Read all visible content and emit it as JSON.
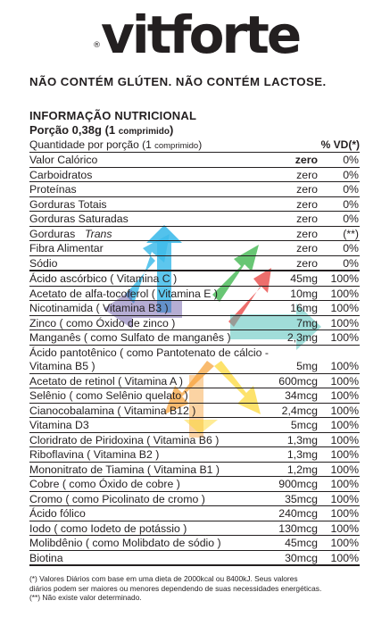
{
  "brand": {
    "registered": "®",
    "name": "vitforte"
  },
  "notice": "NÃO CONTÉM GLÚTEN. NÃO CONTÉM LACTOSE.",
  "nutrition": {
    "title": "INFORMAÇÃO NUTRICIONAL",
    "portion_main": "Porção 0,38g",
    "portion_paren_open": "(1",
    "portion_unit": "comprimido",
    "portion_paren_close": ")",
    "qty_main": "Quantidade por porção (1",
    "qty_unit": "comprimido",
    "qty_close": ")",
    "vd_header": "% VD(*)",
    "rows": [
      {
        "name": "Valor  Calórico",
        "amount": "zero",
        "vd": "0%"
      },
      {
        "name": "Carboidratos",
        "amount": "zero",
        "vd": "0%"
      },
      {
        "name": "Proteínas",
        "amount": "zero",
        "vd": "0%"
      },
      {
        "name": "Gorduras  Totais",
        "amount": "zero",
        "vd": "0%"
      },
      {
        "name": "Gorduras  Saturadas",
        "amount": "zero",
        "vd": "0%"
      },
      {
        "name": "Gorduras ",
        "name_italic": "Trans",
        "amount": "zero",
        "vd": "(**)"
      },
      {
        "name": "Fibra  Alimentar",
        "amount": "zero",
        "vd": "0%"
      },
      {
        "name": "Sódio",
        "amount": "zero",
        "vd": "0%"
      },
      {
        "name": "Ácido ascórbico ( Vitamina C )",
        "amount": "45mg",
        "vd": "100%"
      },
      {
        "name": "Acetato de alfa-tocoferol ( Vitamina E )",
        "amount": "10mg",
        "vd": "100%"
      },
      {
        "name": "Nicotinamida ( Vitamina B3 )",
        "amount": "16mg",
        "vd": "100%"
      },
      {
        "name": "Zinco ( como Óxido de zinco )",
        "amount": "7mg",
        "vd": "100%"
      },
      {
        "name": "Manganês ( como Sulfato de manganês )",
        "amount": "2,3mg",
        "vd": "100%"
      },
      {
        "name": "Ácido pantotênico ( como Pantotenato de cálcio -",
        "amount": "",
        "vd": ""
      },
      {
        "name": "Vitamina  B5  )",
        "amount": "5mg",
        "vd": "100%"
      },
      {
        "name": "Acetato de retinol ( Vitamina A )",
        "amount": "600mcg",
        "vd": "100%"
      },
      {
        "name": "Selênio ( como Selênio quelato )",
        "amount": "34mcg",
        "vd": "100%"
      },
      {
        "name": "Cianocobalamina ( Vitamina B12 )",
        "amount": "2,4mcg",
        "vd": "100%"
      },
      {
        "name": "Vitamina  D3",
        "amount": "5mcg",
        "vd": "100%"
      },
      {
        "name": "Cloridrato de Piridoxina ( Vitamina B6 )",
        "amount": "1,3mg",
        "vd": "100%"
      },
      {
        "name": "Riboflavina ( Vitamina B2 )",
        "amount": "1,3mg",
        "vd": "100%"
      },
      {
        "name": "Mononitrato de Tiamina ( Vitamina B1 )",
        "amount": "1,2mg",
        "vd": "100%"
      },
      {
        "name": "Cobre ( como Óxido de cobre )",
        "amount": "900mcg",
        "vd": "100%"
      },
      {
        "name": "Cromo ( como Picolinato de cromo )",
        "amount": "35mcg",
        "vd": "100%"
      },
      {
        "name": "Ácido fólico",
        "amount": "240mcg",
        "vd": "100%"
      },
      {
        "name": "Iodo ( como Iodeto de potássio )",
        "amount": "130mcg",
        "vd": "100%"
      },
      {
        "name": "Molibdênio ( como Molibdato de sódio )",
        "amount": "45mcg",
        "vd": "100%"
      },
      {
        "name": "Biotina",
        "amount": "30mcg",
        "vd": "100%"
      }
    ],
    "footnote": [
      "(*) Valores Diários com base em uma dieta de 2000kcal ou 8400kJ.  Seus valores",
      "diários podem ser maiores ou menores dependendo de suas necessidades energéticas.",
      "(**) Não existe valor determinado."
    ]
  },
  "colors": {
    "text": "#231f20",
    "arrow_blue": "#2bb5e8",
    "arrow_green": "#3bb54a",
    "arrow_red": "#e8423f",
    "arrow_teal": "#3fb9b0",
    "arrow_orange": "#f7941d",
    "arrow_yellow": "#fcd116",
    "arrow_purple": "#5b4a9e"
  },
  "watermark_icon": "multicolor-arrows-logo-icon"
}
